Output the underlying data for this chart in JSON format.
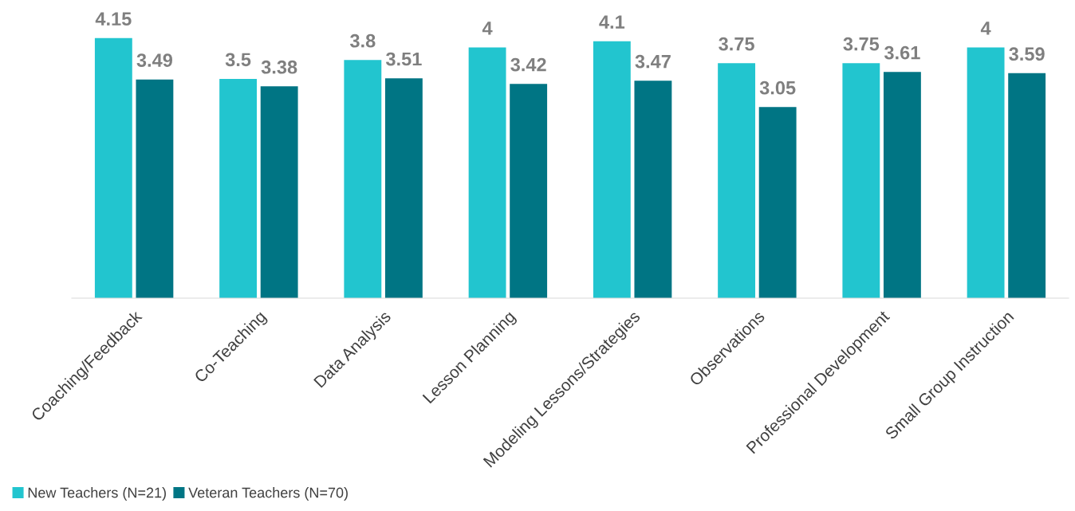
{
  "chart_data": {
    "type": "bar",
    "categories": [
      "Coaching/Feedback",
      "Co-Teaching",
      "Data Analysis",
      "Lesson Planning",
      "Modeling Lessons/Strategies",
      "Observations",
      "Professional Development",
      "Small Group Instruction"
    ],
    "series": [
      {
        "name": "New Teachers (N=21)",
        "color": "#22c5cf",
        "values": [
          4.15,
          3.5,
          3.8,
          4,
          4.1,
          3.75,
          3.75,
          4
        ]
      },
      {
        "name": "Veteran Teachers (N=70)",
        "color": "#007584",
        "values": [
          3.49,
          3.38,
          3.51,
          3.42,
          3.47,
          3.05,
          3.61,
          3.59
        ]
      }
    ],
    "data_labels": true,
    "legend": "bottom left",
    "grid": false
  }
}
